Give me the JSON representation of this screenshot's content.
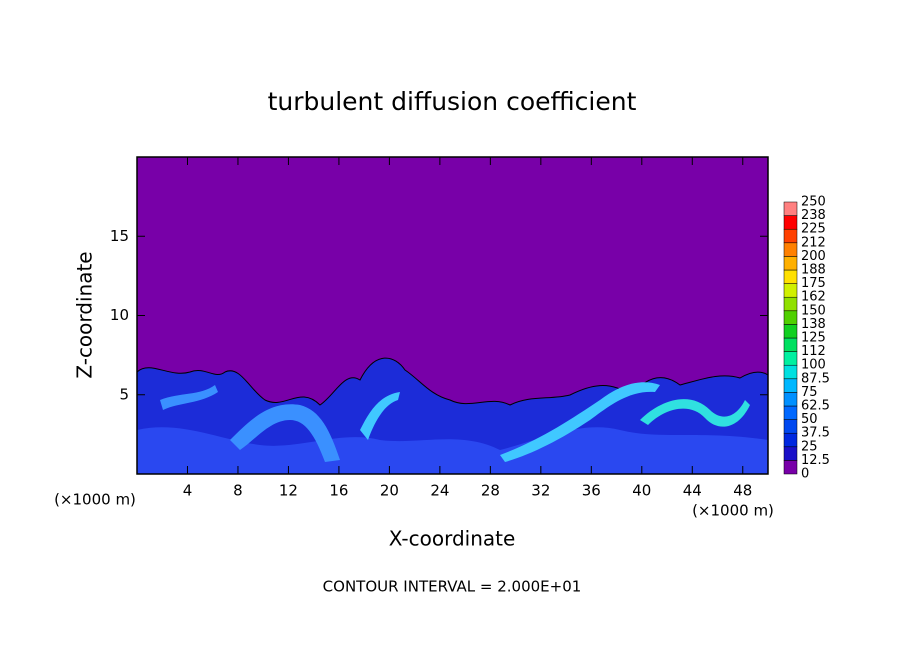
{
  "chart_data": {
    "type": "contour",
    "title": "turbulent diffusion coefficient",
    "x_label": "X-coordinate",
    "y_label": "Z-coordinate",
    "x_unit": "(×1000 m)",
    "note": "CONTOUR INTERVAL = 2.000E+01",
    "xlim": [
      0,
      50
    ],
    "xticks": [
      4,
      8,
      12,
      16,
      20,
      24,
      28,
      32,
      36,
      40,
      44,
      48
    ],
    "ylim": [
      0,
      20
    ],
    "yticks": [
      5,
      10,
      15
    ],
    "colorbar": {
      "levels": [
        0,
        12.5,
        25,
        37.5,
        50,
        62.5,
        75,
        87.5,
        100,
        {
          "value": 112.5,
          "label": "112"
        },
        125,
        {
          "value": 137.5,
          "label": "138"
        },
        150,
        {
          "value": 162.5,
          "label": "162"
        },
        175,
        {
          "value": 187.5,
          "label": "188"
        },
        200,
        {
          "value": 212.5,
          "label": "212"
        },
        225,
        {
          "value": 237.5,
          "label": "238"
        },
        250
      ],
      "colors": [
        "#7800a8",
        "#1a10c8",
        "#0028e0",
        "#0048f0",
        "#0068ff",
        "#0090ff",
        "#00b8ff",
        "#00e0e0",
        "#00f0a0",
        "#00e060",
        "#10d020",
        "#50d000",
        "#90e000",
        "#d0f000",
        "#ffe000",
        "#ffb000",
        "#ff8000",
        "#ff4000",
        "#ff0000",
        "#ff8080"
      ]
    }
  }
}
